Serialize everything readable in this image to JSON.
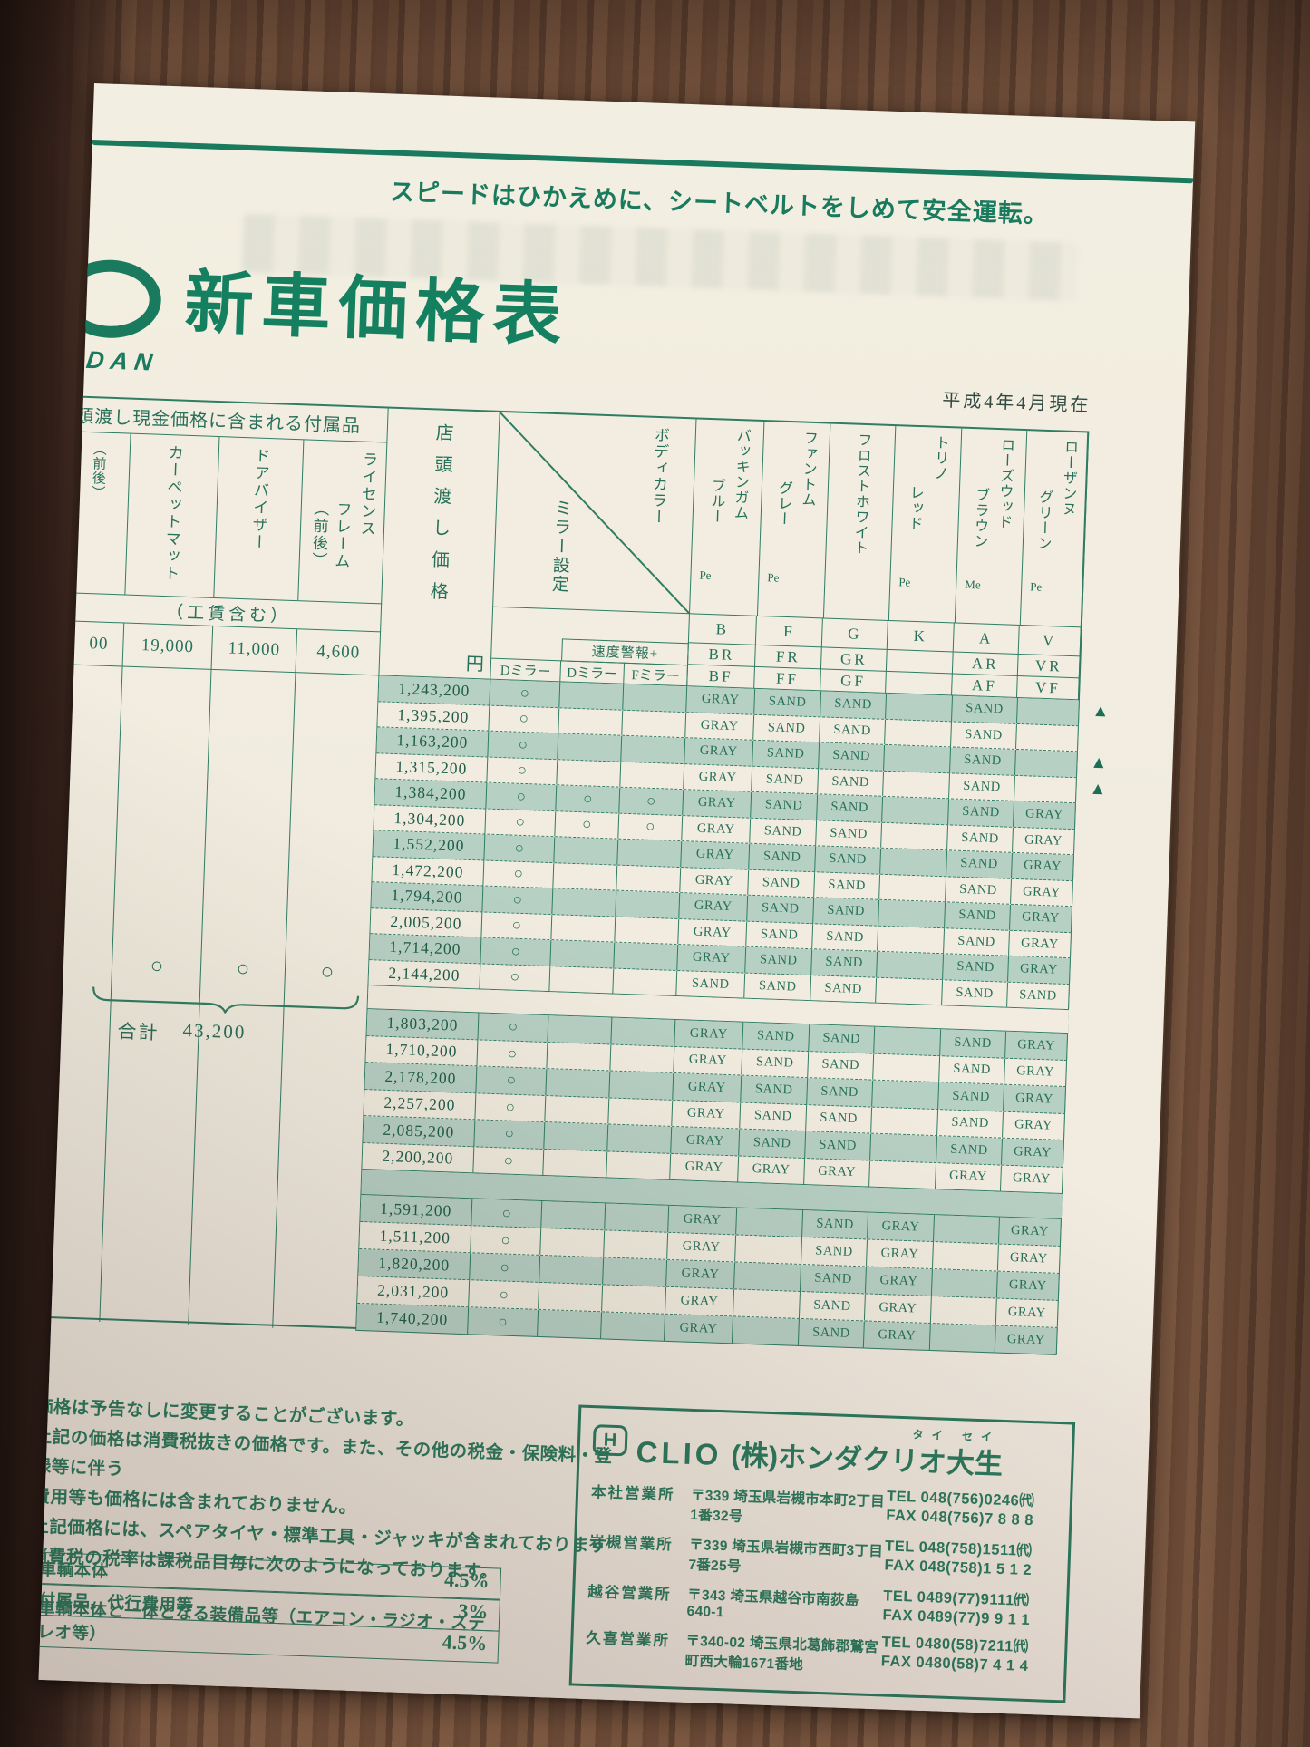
{
  "palette": {
    "brand_green": "#1a7a5e",
    "table_line": "#2f7d63",
    "row_shade": "#b7d0c4",
    "paper": "#f1ecdf"
  },
  "page": {
    "slogan": "スピードはひかえめに、シートベルトをしめて安全運転。",
    "logo_partial": "O",
    "logo_sub": "DAN",
    "title": "新車価格表",
    "as_of": "平成4年4月現在"
  },
  "accessories": {
    "header": "頭渡し現金価格に含まれる付属品",
    "partial_col": {
      "name": "（前後）",
      "value": "00"
    },
    "columns": [
      {
        "name_lines": [
          "カーペットマット",
          ""
        ],
        "value": "19,000"
      },
      {
        "name_lines": [
          "ドアバイザー",
          ""
        ],
        "value": "11,000"
      },
      {
        "name_lines": [
          "ライセンス",
          "フレーム（前後）"
        ],
        "value": "4,600"
      }
    ],
    "labor_note": "（工賃含む）",
    "included_mark": "○",
    "total_label": "合計",
    "total_value": "43,200"
  },
  "price_table": {
    "price_header": "店頭渡し価格",
    "unit": "円",
    "mirror_header": "ミラー設定",
    "body_color_header": "ボディカラー",
    "speed_warning": "速度警報+",
    "mirror_cols": [
      "Dミラー",
      "Dミラー",
      "Fミラー"
    ],
    "circle_mark": "○",
    "triangle_mark": "▲",
    "colors": [
      {
        "lines": [
          "バッキンガム",
          "ブルー"
        ],
        "finish": "Pe",
        "codes": [
          "B",
          "BR",
          "BF"
        ]
      },
      {
        "lines": [
          "ファントム",
          "グレー"
        ],
        "finish": "Pe",
        "codes": [
          "F",
          "FR",
          "FF"
        ]
      },
      {
        "lines": [
          "フロストホワイト",
          ""
        ],
        "finish": "",
        "codes": [
          "G",
          "GR",
          "GF"
        ]
      },
      {
        "lines": [
          "トリノ",
          "レッド"
        ],
        "finish": "Pe",
        "codes": [
          "K",
          "",
          ""
        ]
      },
      {
        "lines": [
          "ローズウッド",
          "ブラウン"
        ],
        "finish": "Me",
        "codes": [
          "A",
          "AR",
          "AF"
        ]
      },
      {
        "lines": [
          "ローザンヌ",
          "グリーン"
        ],
        "finish": "Pe",
        "codes": [
          "V",
          "VR",
          "VF"
        ]
      }
    ],
    "blocks": [
      {
        "rows": [
          {
            "price": "1,243,200",
            "m": [
              1,
              0,
              0
            ],
            "c": [
              "GRAY",
              "SAND",
              "SAND",
              "",
              "SAND",
              ""
            ],
            "mark": true
          },
          {
            "price": "1,395,200",
            "m": [
              1,
              0,
              0
            ],
            "c": [
              "GRAY",
              "SAND",
              "SAND",
              "",
              "SAND",
              ""
            ],
            "mark": false
          },
          {
            "price": "1,163,200",
            "m": [
              1,
              0,
              0
            ],
            "c": [
              "GRAY",
              "SAND",
              "SAND",
              "",
              "SAND",
              ""
            ],
            "mark": true
          },
          {
            "price": "1,315,200",
            "m": [
              1,
              0,
              0
            ],
            "c": [
              "GRAY",
              "SAND",
              "SAND",
              "",
              "SAND",
              ""
            ],
            "mark": true
          },
          {
            "price": "1,384,200",
            "m": [
              1,
              1,
              1
            ],
            "c": [
              "GRAY",
              "SAND",
              "SAND",
              "",
              "SAND",
              "GRAY"
            ],
            "mark": false
          },
          {
            "price": "1,304,200",
            "m": [
              1,
              1,
              1
            ],
            "c": [
              "GRAY",
              "SAND",
              "SAND",
              "",
              "SAND",
              "GRAY"
            ],
            "mark": false
          },
          {
            "price": "1,552,200",
            "m": [
              1,
              0,
              0
            ],
            "c": [
              "GRAY",
              "SAND",
              "SAND",
              "",
              "SAND",
              "GRAY"
            ],
            "mark": false
          },
          {
            "price": "1,472,200",
            "m": [
              1,
              0,
              0
            ],
            "c": [
              "GRAY",
              "SAND",
              "SAND",
              "",
              "SAND",
              "GRAY"
            ],
            "mark": false
          },
          {
            "price": "1,794,200",
            "m": [
              1,
              0,
              0
            ],
            "c": [
              "GRAY",
              "SAND",
              "SAND",
              "",
              "SAND",
              "GRAY"
            ],
            "mark": false
          },
          {
            "price": "2,005,200",
            "m": [
              1,
              0,
              0
            ],
            "c": [
              "GRAY",
              "SAND",
              "SAND",
              "",
              "SAND",
              "GRAY"
            ],
            "mark": false
          },
          {
            "price": "1,714,200",
            "m": [
              1,
              0,
              0
            ],
            "c": [
              "GRAY",
              "SAND",
              "SAND",
              "",
              "SAND",
              "GRAY"
            ],
            "mark": false
          },
          {
            "price": "2,144,200",
            "m": [
              1,
              0,
              0
            ],
            "c": [
              "SAND",
              "SAND",
              "SAND",
              "",
              "SAND",
              "SAND"
            ],
            "mark": false
          }
        ]
      },
      {
        "rows": [
          {
            "price": "1,803,200",
            "m": [
              1,
              0,
              0
            ],
            "c": [
              "GRAY",
              "SAND",
              "SAND",
              "",
              "SAND",
              "GRAY"
            ],
            "mark": false
          },
          {
            "price": "1,710,200",
            "m": [
              1,
              0,
              0
            ],
            "c": [
              "GRAY",
              "SAND",
              "SAND",
              "",
              "SAND",
              "GRAY"
            ],
            "mark": false
          },
          {
            "price": "2,178,200",
            "m": [
              1,
              0,
              0
            ],
            "c": [
              "GRAY",
              "SAND",
              "SAND",
              "",
              "SAND",
              "GRAY"
            ],
            "mark": false
          },
          {
            "price": "2,257,200",
            "m": [
              1,
              0,
              0
            ],
            "c": [
              "GRAY",
              "SAND",
              "SAND",
              "",
              "SAND",
              "GRAY"
            ],
            "mark": false
          },
          {
            "price": "2,085,200",
            "m": [
              1,
              0,
              0
            ],
            "c": [
              "GRAY",
              "SAND",
              "SAND",
              "",
              "SAND",
              "GRAY"
            ],
            "mark": false
          },
          {
            "price": "2,200,200",
            "m": [
              1,
              0,
              0
            ],
            "c": [
              "GRAY",
              "GRAY",
              "GRAY",
              "",
              "GRAY",
              "GRAY"
            ],
            "mark": false
          }
        ]
      },
      {
        "rows": [
          {
            "price": "1,591,200",
            "m": [
              1,
              0,
              0
            ],
            "c": [
              "GRAY",
              "",
              "SAND",
              "GRAY",
              "",
              "GRAY"
            ],
            "mark": false
          },
          {
            "price": "1,511,200",
            "m": [
              1,
              0,
              0
            ],
            "c": [
              "GRAY",
              "",
              "SAND",
              "GRAY",
              "",
              "GRAY"
            ],
            "mark": false
          },
          {
            "price": "1,820,200",
            "m": [
              1,
              0,
              0
            ],
            "c": [
              "GRAY",
              "",
              "SAND",
              "GRAY",
              "",
              "GRAY"
            ],
            "mark": false
          },
          {
            "price": "2,031,200",
            "m": [
              1,
              0,
              0
            ],
            "c": [
              "GRAY",
              "",
              "SAND",
              "GRAY",
              "",
              "GRAY"
            ],
            "mark": false
          },
          {
            "price": "1,740,200",
            "m": [
              1,
              0,
              0
            ],
            "c": [
              "GRAY",
              "",
              "SAND",
              "GRAY",
              "",
              "GRAY"
            ],
            "mark": false
          }
        ]
      }
    ]
  },
  "notes": [
    "価格は予告なしに変更することがございます。",
    "上記の価格は消費税抜きの価格です。また、その他の税金・保険料・登録等に伴う",
    "費用等も価格には含まれておりません。",
    "上記価格には、スペアタイヤ・標準工具・ジャッキが含まれております",
    "消費税の税率は課税品目毎に次のようになっております。"
  ],
  "tax_table": [
    {
      "label": "車輌本体",
      "rate": "4.5%"
    },
    {
      "label": "付属品、代行費用等",
      "rate": "3%"
    },
    {
      "label": "車輌本体と一体となる装備品等（エアコン・ラジオ・ステレオ等）",
      "rate": "4.5%"
    }
  ],
  "dealer": {
    "logo_letter": "H",
    "brand": "CLIO",
    "company": "(株)ホンダクリオ大生",
    "furigana": "タイ セイ",
    "offices": [
      {
        "name": "本社営業所",
        "address": "〒339 埼玉県岩槻市本町2丁目1番32号",
        "tel": "TEL 048(756)0246㈹",
        "fax": "FAX 048(756)7 8 8 8"
      },
      {
        "name": "岩槻営業所",
        "address": "〒339 埼玉県岩槻市西町3丁目7番25号",
        "tel": "TEL 048(758)1511㈹",
        "fax": "FAX 048(758)1 5 1 2"
      },
      {
        "name": "越谷営業所",
        "address": "〒343 埼玉県越谷市南荻島640-1",
        "tel": "TEL 0489(77)9111㈹",
        "fax": "FAX 0489(77)9 9 1 1"
      },
      {
        "name": "久喜営業所",
        "address": "〒340-02 埼玉県北葛飾郡鷲宮町西大輪1671番地",
        "tel": "TEL 0480(58)7211㈹",
        "fax": "FAX 0480(58)7 4 1 4"
      }
    ]
  }
}
